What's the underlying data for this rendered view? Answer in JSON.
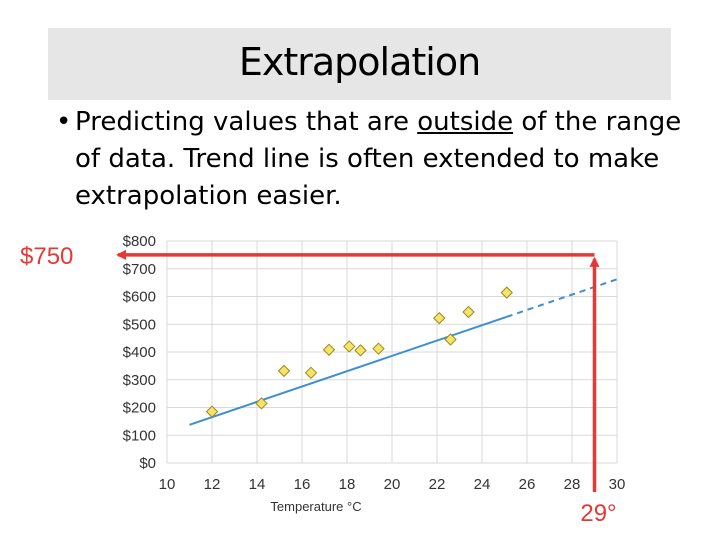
{
  "slide": {
    "title": "Extrapolation",
    "bullet_mark": "•",
    "bullet_before": "Predicting values that are ",
    "bullet_emphasis": "outside",
    "bullet_after": " of the range of data. Trend line is often extended to make extrapolation easier."
  },
  "chart_data": {
    "type": "scatter",
    "xlabel": "Temperature °C",
    "ylabel": "",
    "xlim": [
      10,
      30
    ],
    "ylim": [
      0,
      800
    ],
    "x_ticks": [
      "10",
      "12",
      "14",
      "16",
      "18",
      "20",
      "22",
      "24",
      "26",
      "28",
      "30"
    ],
    "y_ticks": [
      "$0",
      "$100",
      "$200",
      "$300",
      "$400",
      "$500",
      "$600",
      "$700",
      "$800"
    ],
    "grid": true,
    "point_color": "#f5e36a",
    "trend_color": "#3d8fd1",
    "highlight_color": "#e53935",
    "points": [
      {
        "x": 12.0,
        "y": 185
      },
      {
        "x": 14.2,
        "y": 215
      },
      {
        "x": 15.2,
        "y": 332
      },
      {
        "x": 16.4,
        "y": 325
      },
      {
        "x": 17.2,
        "y": 408
      },
      {
        "x": 18.1,
        "y": 420
      },
      {
        "x": 18.6,
        "y": 406
      },
      {
        "x": 19.4,
        "y": 412
      },
      {
        "x": 22.1,
        "y": 522
      },
      {
        "x": 22.6,
        "y": 445
      },
      {
        "x": 23.4,
        "y": 544
      },
      {
        "x": 25.1,
        "y": 614
      }
    ],
    "trend_line": {
      "x_start": 11,
      "x_end": 25.1,
      "x_extend_to": 30,
      "slope": 27.6,
      "intercept": -166
    },
    "extrapolation": {
      "x": 29,
      "y": 750,
      "x_label": "29°",
      "y_label": "$750"
    }
  }
}
